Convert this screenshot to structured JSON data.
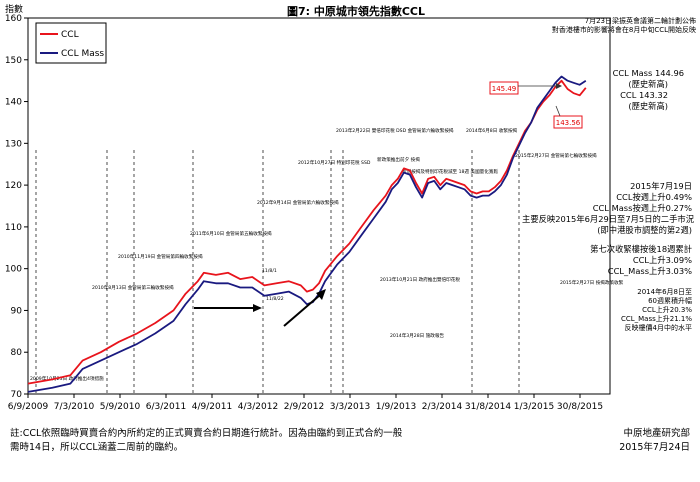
{
  "chart_data": {
    "type": "line",
    "title": "圖7: 中原城市領先指數CCL",
    "ylabel": "指數",
    "ylim": [
      70,
      160
    ],
    "yticks": [
      70,
      80,
      90,
      100,
      110,
      120,
      130,
      140,
      150,
      160
    ],
    "x_tick_labels": [
      "6/9/2009",
      "7/3/2010",
      "5/9/2010",
      "6/3/2011",
      "4/9/2011",
      "4/3/2012",
      "2/9/2012",
      "3/3/2013",
      "1/9/2013",
      "2/3/2014",
      "31/8/2014",
      "1/3/2015",
      "30/8/2015"
    ],
    "legend_position": "top-left",
    "grid": false,
    "series": [
      {
        "name": "CCL",
        "color": "#e8141c",
        "points": [
          [
            0,
            72.5
          ],
          [
            8,
            73.5
          ],
          [
            14,
            74.5
          ],
          [
            18,
            78
          ],
          [
            24,
            80
          ],
          [
            30,
            82.5
          ],
          [
            36,
            84.5
          ],
          [
            42,
            87
          ],
          [
            48,
            90
          ],
          [
            52,
            94
          ],
          [
            56,
            97
          ],
          [
            58,
            99
          ],
          [
            62,
            98.5
          ],
          [
            66,
            99
          ],
          [
            70,
            97.5
          ],
          [
            74,
            98
          ],
          [
            78,
            96
          ],
          [
            82,
            96.5
          ],
          [
            86,
            97
          ],
          [
            90,
            96
          ],
          [
            92,
            94.5
          ],
          [
            94,
            95
          ],
          [
            96,
            96.5
          ],
          [
            98,
            99.5
          ],
          [
            102,
            103
          ],
          [
            106,
            106
          ],
          [
            110,
            110
          ],
          [
            114,
            114
          ],
          [
            118,
            117.5
          ],
          [
            120,
            120
          ],
          [
            122,
            121.5
          ],
          [
            124,
            124
          ],
          [
            126,
            123.5
          ],
          [
            128,
            120.5
          ],
          [
            130,
            118
          ],
          [
            132,
            121.5
          ],
          [
            134,
            122
          ],
          [
            136,
            120
          ],
          [
            138,
            121.5
          ],
          [
            140,
            121
          ],
          [
            142,
            120.5
          ],
          [
            144,
            120
          ],
          [
            146,
            118.5
          ],
          [
            148,
            118
          ],
          [
            150,
            118.5
          ],
          [
            152,
            118.5
          ],
          [
            154,
            119.5
          ],
          [
            156,
            121
          ],
          [
            158,
            123.5
          ],
          [
            160,
            127
          ],
          [
            162,
            130
          ],
          [
            164,
            133
          ],
          [
            166,
            135
          ],
          [
            168,
            138
          ],
          [
            170,
            140
          ],
          [
            172,
            141.5
          ],
          [
            174,
            143.5
          ],
          [
            176,
            145
          ],
          [
            178,
            143
          ],
          [
            180,
            142
          ],
          [
            182,
            141.5
          ],
          [
            184,
            143.3
          ]
        ]
      },
      {
        "name": "CCL Mass",
        "color": "#1a1a80",
        "points": [
          [
            0,
            70.5
          ],
          [
            8,
            71.5
          ],
          [
            14,
            72.5
          ],
          [
            18,
            76
          ],
          [
            24,
            78
          ],
          [
            30,
            80
          ],
          [
            36,
            82
          ],
          [
            42,
            84.5
          ],
          [
            48,
            87.5
          ],
          [
            52,
            91.5
          ],
          [
            56,
            95
          ],
          [
            58,
            97
          ],
          [
            62,
            96.5
          ],
          [
            66,
            96.5
          ],
          [
            70,
            95.5
          ],
          [
            74,
            95.5
          ],
          [
            78,
            93.5
          ],
          [
            82,
            94
          ],
          [
            86,
            94.5
          ],
          [
            90,
            93
          ],
          [
            92,
            91.5
          ],
          [
            94,
            92
          ],
          [
            96,
            94
          ],
          [
            98,
            97
          ],
          [
            102,
            101
          ],
          [
            106,
            104
          ],
          [
            110,
            108
          ],
          [
            114,
            112
          ],
          [
            118,
            116
          ],
          [
            120,
            119
          ],
          [
            122,
            120.5
          ],
          [
            124,
            123
          ],
          [
            126,
            122.5
          ],
          [
            128,
            119.5
          ],
          [
            130,
            117
          ],
          [
            132,
            120.5
          ],
          [
            134,
            121
          ],
          [
            136,
            119
          ],
          [
            138,
            120.5
          ],
          [
            140,
            120
          ],
          [
            142,
            119.5
          ],
          [
            144,
            119
          ],
          [
            146,
            117.5
          ],
          [
            148,
            117
          ],
          [
            150,
            117.5
          ],
          [
            152,
            117.5
          ],
          [
            154,
            118.5
          ],
          [
            156,
            120
          ],
          [
            158,
            122.5
          ],
          [
            160,
            126.5
          ],
          [
            162,
            129.5
          ],
          [
            164,
            132.5
          ],
          [
            166,
            135
          ],
          [
            168,
            138.5
          ],
          [
            170,
            140.5
          ],
          [
            172,
            142.5
          ],
          [
            174,
            144.5
          ],
          [
            176,
            146
          ],
          [
            178,
            145
          ],
          [
            180,
            144.5
          ],
          [
            182,
            144
          ],
          [
            184,
            144.96
          ]
        ]
      }
    ],
    "highlights": [
      {
        "label": "145.49",
        "series": "CCL Mass"
      },
      {
        "label": "143.56",
        "series": "CCL"
      }
    ],
    "annotations": {
      "top_right": [
        "7月23日梁振英會議第二輪計劃公佈",
        "對香港樓市的影響將會在8月中旬CCL開始反映"
      ],
      "latest": [
        "CCL Mass 144.96",
        "(歷史新高)",
        "CCL 143.32",
        "(歷史新高)"
      ],
      "weekly": [
        "2015年7月19日",
        "CCL按週上升0.49%",
        "CCL Mass按週上升0.27%",
        "主要反映2015年6月29日至7月5日的二手市況",
        "(即中港股市調整的第2週)"
      ],
      "streak": [
        "第七次收緊樓按後18週累計",
        "CCL上升3.09%",
        "CCL_Mass上升3.03%"
      ],
      "since": [
        "2014年6月8日至",
        "60週累積升幅",
        "CCL上升20.3%",
        "CCL_Mass上升21.1%",
        "反映樓價4月中的水平"
      ],
      "event_labels": [
        "2009年10月23日 政府推出4項措施",
        "2010年8月13日 金管局第三輪收緊按揭",
        "2010年11月19日 金管局第四輪收緊按揭",
        "2011年6月10日 金管局第五輪收緊按揭",
        "2012年9月14日 金管局第六輪收緊按揭",
        "2012年10月27日 特別印花稅 SSD",
        "2013年2月22日 雙倍印花稅 DSD 金管局第六輪收緊按揭",
        "新政策推出前夕 按揭",
        "新增按揭及特別印花稅減至 18週 美國量化寬鬆",
        "2014年6月8日 收緊按揭",
        "2015年2月27日 金管局第七輪收緊按揭",
        "2013年10月21日 政府推出雙倍印花稅",
        "2014年3月28日 施政報告",
        "2015年2月27日 按揭政策收緊"
      ],
      "small_labels": [
        "11/8/1",
        "11/8/22"
      ]
    }
  },
  "footer": {
    "note_line1": "註:CCL依照臨時買賣合約內所約定的正式買賣合約日期進行統計。因為由臨約到正式合約一般",
    "note_line2": "需時14日，所以CCL涵蓋二周前的臨約。",
    "source": "中原地產研究部",
    "date": "2015年7月24日"
  }
}
